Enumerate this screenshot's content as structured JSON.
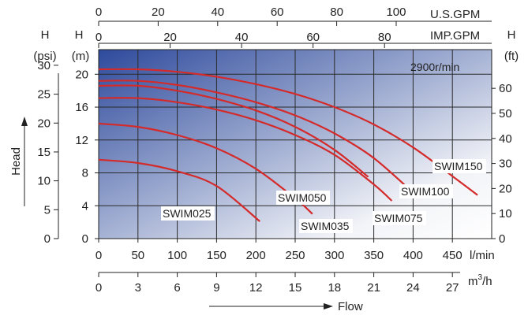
{
  "chart_data": {
    "type": "line",
    "title": "",
    "annotation": "2900r/min",
    "y_axis_label": "Head",
    "x_axis_label": "Flow",
    "axes": {
      "top_usgpm": {
        "label": "U.S.GPM",
        "ticks": [
          "0",
          "20",
          "40",
          "60",
          "80",
          "100"
        ]
      },
      "top_impgpm": {
        "label": "IMP.GPM",
        "ticks": [
          "0",
          "20",
          "40",
          "60",
          "80"
        ]
      },
      "bottom_lmin": {
        "label": "l/min",
        "ticks": [
          "0",
          "50",
          "100",
          "150",
          "200",
          "250",
          "300",
          "350",
          "400",
          "450"
        ],
        "range": [
          0,
          500
        ]
      },
      "bottom_m3h": {
        "label": "m³/h",
        "unit_main": "m",
        "unit_sup": "3",
        "unit_tail": "/h",
        "ticks": [
          "0",
          "3",
          "6",
          "9",
          "12",
          "15",
          "18",
          "21",
          "24",
          "27"
        ]
      },
      "left_m": {
        "label_top": "H",
        "label_bottom": "(m)",
        "ticks": [
          "0",
          "4",
          "8",
          "12",
          "16",
          "20"
        ],
        "range": [
          0,
          23
        ]
      },
      "left_psi": {
        "label_top": "H",
        "label_bottom": "(psi)",
        "ticks": [
          "0",
          "5",
          "10",
          "15",
          "20",
          "25",
          "30"
        ]
      },
      "right_ft": {
        "label_top": "H",
        "label_bottom": "(ft)",
        "ticks": [
          "0",
          "10",
          "20",
          "30",
          "40",
          "50",
          "60"
        ]
      }
    },
    "grid": true,
    "series": [
      {
        "name": "SWIM025",
        "points": [
          [
            0,
            9.6
          ],
          [
            50,
            9.2
          ],
          [
            100,
            8.2
          ],
          [
            150,
            6.4
          ],
          [
            205,
            2.1
          ]
        ]
      },
      {
        "name": "SWIM035",
        "points": [
          [
            0,
            14.0
          ],
          [
            50,
            13.6
          ],
          [
            100,
            12.6
          ],
          [
            150,
            11.0
          ],
          [
            200,
            8.5
          ],
          [
            250,
            4.9
          ],
          [
            272,
            3.0
          ]
        ]
      },
      {
        "name": "SWIM050",
        "points": [
          [
            0,
            18.6
          ],
          [
            50,
            18.6
          ],
          [
            100,
            18.0
          ],
          [
            150,
            17.0
          ],
          [
            200,
            15.6
          ],
          [
            250,
            13.6
          ],
          [
            300,
            10.8
          ],
          [
            343,
            7.5
          ]
        ]
      },
      {
        "name": "SWIM075",
        "points": [
          [
            0,
            17.1
          ],
          [
            50,
            17.1
          ],
          [
            100,
            16.6
          ],
          [
            150,
            15.7
          ],
          [
            200,
            14.4
          ],
          [
            250,
            12.6
          ],
          [
            300,
            10.2
          ],
          [
            350,
            6.6
          ],
          [
            373,
            4.6
          ]
        ]
      },
      {
        "name": "SWIM100",
        "points": [
          [
            0,
            19.2
          ],
          [
            50,
            19.2
          ],
          [
            100,
            18.7
          ],
          [
            150,
            17.8
          ],
          [
            200,
            16.6
          ],
          [
            250,
            15.0
          ],
          [
            300,
            12.8
          ],
          [
            350,
            9.8
          ],
          [
            400,
            5.6
          ]
        ]
      },
      {
        "name": "SWIM150",
        "points": [
          [
            0,
            20.6
          ],
          [
            50,
            20.6
          ],
          [
            100,
            20.3
          ],
          [
            150,
            19.7
          ],
          [
            200,
            18.8
          ],
          [
            250,
            17.6
          ],
          [
            300,
            16.0
          ],
          [
            350,
            13.9
          ],
          [
            400,
            11.1
          ],
          [
            450,
            7.6
          ],
          [
            482,
            5.3
          ]
        ]
      }
    ]
  }
}
